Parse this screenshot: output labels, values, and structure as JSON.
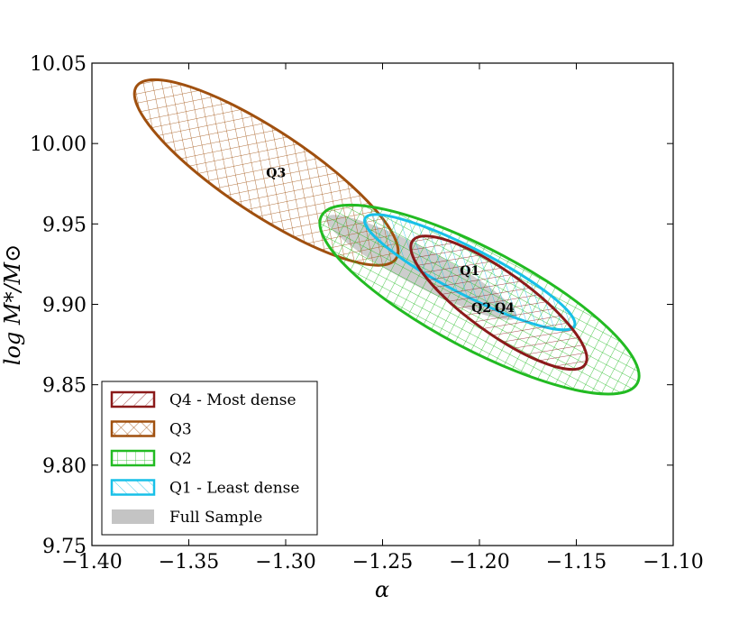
{
  "chart_data": {
    "type": "scatter",
    "xlabel": "α",
    "ylabel": "log M*/M⊙",
    "xlim": [
      -1.4,
      -1.1
    ],
    "ylim": [
      9.75,
      10.05
    ],
    "xticks": [
      "−1.40",
      "−1.35",
      "−1.30",
      "−1.25",
      "−1.20",
      "−1.15",
      "−1.10"
    ],
    "yticks": [
      "9.75",
      "9.80",
      "9.85",
      "9.90",
      "9.95",
      "10.00",
      "10.05"
    ],
    "legend_position": "lower-left",
    "series": [
      {
        "id": "q4",
        "name": "Q4 - Most dense",
        "color": "#8b1a1a",
        "hatch": "back-diagonal",
        "center": [
          -1.19,
          9.901
        ],
        "vertex_a": [
          -1.145,
          9.862
        ],
        "vertex_b": [
          -1.234,
          9.939
        ],
        "co_vertex": [
          -1.183,
          9.884
        ]
      },
      {
        "id": "q3",
        "name": "Q3",
        "color": "#a0500f",
        "hatch": "crosshatch",
        "center": [
          -1.31,
          9.982
        ],
        "vertex_a": [
          -1.371,
          10.036
        ],
        "vertex_b": [
          -1.237,
          9.929
        ],
        "co_vertex": [
          -1.3,
          10.005
        ]
      },
      {
        "id": "q2",
        "name": "Q2",
        "color": "#22bb22",
        "hatch": "grid",
        "center": [
          -1.2,
          9.903
        ],
        "vertex_a": [
          -1.276,
          9.951
        ],
        "vertex_b": [
          -1.113,
          9.847
        ],
        "co_vertex": [
          -1.209,
          9.874
        ]
      },
      {
        "id": "q1",
        "name": "Q1 - Least dense",
        "color": "#18c0e8",
        "hatch": "forward-diagonal",
        "center": [
          -1.205,
          9.92
        ],
        "vertex_a": [
          -1.258,
          9.955
        ],
        "vertex_b": [
          -1.15,
          9.888
        ],
        "co_vertex": [
          -1.21,
          9.907
        ]
      },
      {
        "id": "full",
        "name": "Full Sample",
        "color": "#c4c4c4",
        "hatch": "solid",
        "center": [
          -1.23,
          9.923
        ],
        "vertex_a": [
          -1.282,
          9.954
        ],
        "vertex_b": [
          -1.184,
          9.892
        ],
        "co_vertex": [
          -1.233,
          9.912
        ]
      }
    ],
    "annotations": [
      {
        "text": "Q3",
        "x": -1.305,
        "y": 9.982
      },
      {
        "text": "Q1",
        "x": -1.205,
        "y": 9.921
      },
      {
        "text": "Q2",
        "x": -1.199,
        "y": 9.898
      },
      {
        "text": "Q4",
        "x": -1.187,
        "y": 9.898
      }
    ]
  }
}
